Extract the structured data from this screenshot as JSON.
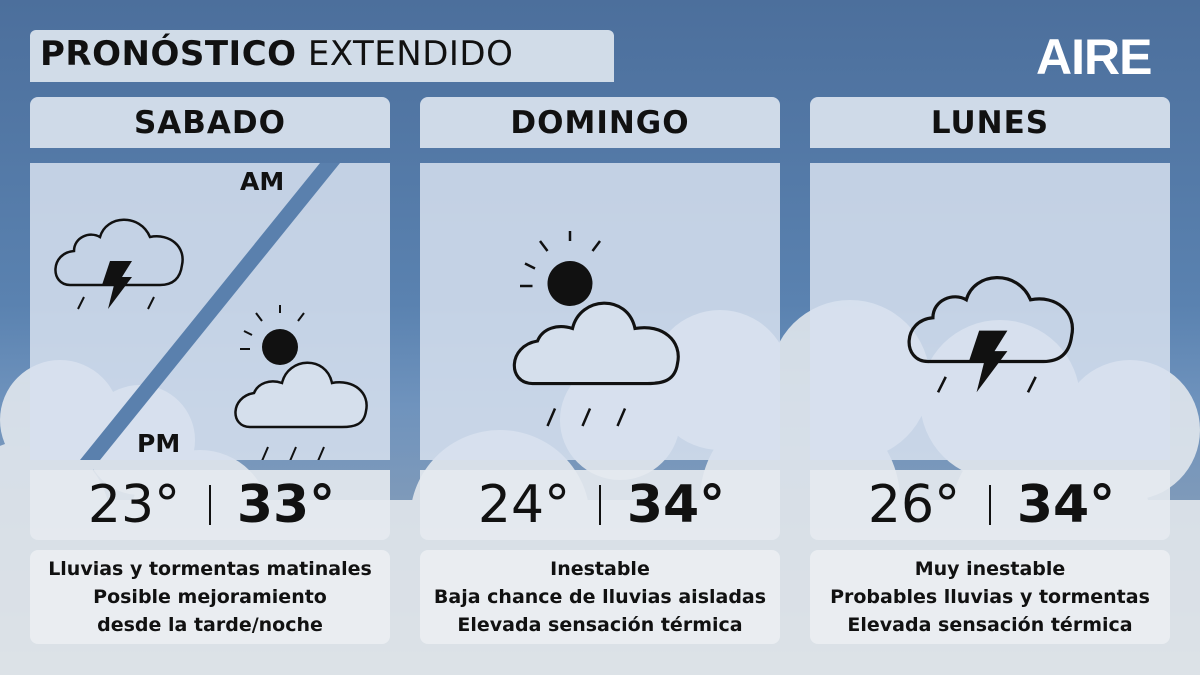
{
  "title": {
    "bold": "PRONÓSTICO",
    "regular": "EXTENDIDO"
  },
  "logo": "AIRE",
  "days": [
    {
      "name": "SABADO",
      "am_label": "AM",
      "pm_label": "PM",
      "am_icon": "thunderstorm-icon",
      "pm_icon": "partly-cloudy-rain-icon",
      "min": "23°",
      "max": "33°",
      "desc": [
        "Lluvias y tormentas matinales",
        "Posible mejoramiento",
        "desde la tarde/noche"
      ]
    },
    {
      "name": "DOMINGO",
      "icon": "partly-cloudy-rain-icon",
      "min": "24°",
      "max": "34°",
      "desc": [
        "Inestable",
        "Baja chance de lluvias aisladas",
        "Elevada sensación térmica"
      ]
    },
    {
      "name": "LUNES",
      "icon": "thunderstorm-icon",
      "min": "26°",
      "max": "34°",
      "desc": [
        "Muy inestable",
        "Probables lluvias y tormentas",
        "Elevada sensación térmica"
      ]
    }
  ]
}
